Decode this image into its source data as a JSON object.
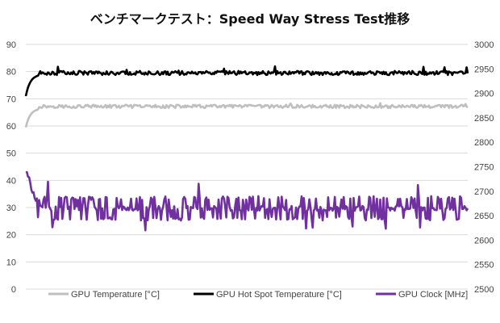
{
  "chart_data": {
    "type": "line",
    "title": "ベンチマークテスト：Speed Way Stress Test推移",
    "left_axis": {
      "ticks": [
        0,
        10,
        20,
        30,
        40,
        50,
        60,
        70,
        80,
        90
      ],
      "ylim": [
        0,
        90
      ]
    },
    "right_axis": {
      "ticks": [
        2500,
        2550,
        2600,
        2650,
        2700,
        2750,
        2800,
        2850,
        2900,
        2950,
        3000
      ],
      "ylim": [
        2500,
        3000
      ]
    },
    "grid": true,
    "legend_position": "bottom",
    "samples": 400,
    "series": [
      {
        "name": "GPU Temperature [°C]",
        "axis": "left",
        "color": "#bfbfbf",
        "profile": {
          "start": 59.5,
          "rise_to": 66.5,
          "steady": 67.2,
          "jitter": 1.2,
          "spike_max": 68.5
        }
      },
      {
        "name": "GPU Hot Spot Temperature [°C]",
        "axis": "left",
        "color": "#000000",
        "profile": {
          "start": 71,
          "rise_to": 79,
          "steady": 79.5,
          "jitter": 1.5,
          "spike_max": 82
        }
      },
      {
        "name": "GPU Clock [MHz]",
        "axis": "right",
        "color": "#7030a0",
        "profile": {
          "start": 2740,
          "rise_to": 2685,
          "steady": 2665,
          "low": 2640,
          "high": 2690,
          "spike_max": 2720,
          "spike_min": 2620
        }
      }
    ]
  }
}
